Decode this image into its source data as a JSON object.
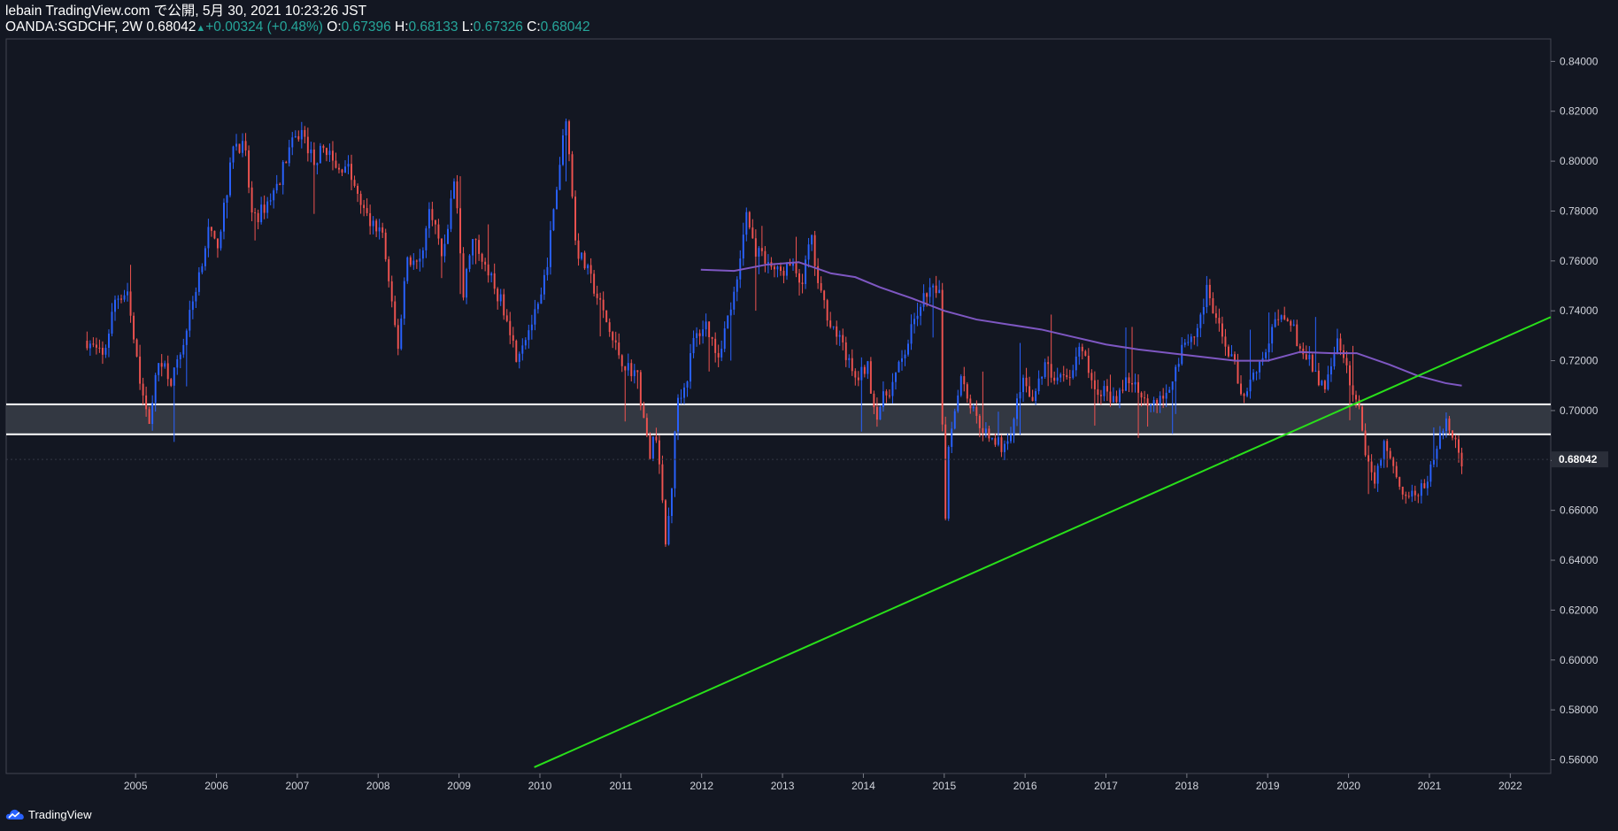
{
  "header": {
    "published": "lebain TradingView.com で公開, 5月 30, 2021 10:23:26 JST",
    "symbol": "OANDA:SGDCHF, 2W 0.68042",
    "change_arrow": "▲",
    "change": "+0.00324 (+0.48%)",
    "o_label": "O:",
    "o_value": "0.67396",
    "h_label": "H:",
    "h_value": "0.68133",
    "l_label": "L:",
    "l_value": "0.67326",
    "c_label": "C:",
    "c_value": "0.68042"
  },
  "footer": {
    "brand": "TradingView"
  },
  "colors": {
    "background": "#131722",
    "up": "#2962ff",
    "down": "#ef5350",
    "ma": "#7e57c2",
    "trendline": "#29e01a",
    "zone_fill": "#3a3e48",
    "zone_border": "#ffffff",
    "last_price_bg": "#2a2e39"
  },
  "chart_data": {
    "type": "candlestick",
    "symbol": "OANDA:SGDCHF",
    "interval": "2W",
    "x_range": [
      2003.4,
      2022.5
    ],
    "y_range": [
      0.5545,
      0.849
    ],
    "x_ticks": [
      "2005",
      "2006",
      "2007",
      "2008",
      "2009",
      "2010",
      "2011",
      "2012",
      "2013",
      "2014",
      "2015",
      "2016",
      "2017",
      "2018",
      "2019",
      "2020",
      "2021",
      "2022"
    ],
    "y_ticks": [
      "0.56000",
      "0.58000",
      "0.60000",
      "0.62000",
      "0.64000",
      "0.66000",
      "0.68000",
      "0.70000",
      "0.72000",
      "0.74000",
      "0.76000",
      "0.78000",
      "0.80000",
      "0.82000",
      "0.84000"
    ],
    "last_price": "0.68042",
    "close_path": [
      [
        2004.4,
        0.728
      ],
      [
        2004.6,
        0.721
      ],
      [
        2004.75,
        0.745
      ],
      [
        2004.9,
        0.748
      ],
      [
        2005.0,
        0.722
      ],
      [
        2005.1,
        0.705
      ],
      [
        2005.15,
        0.694
      ],
      [
        2005.3,
        0.722
      ],
      [
        2005.45,
        0.712
      ],
      [
        2005.6,
        0.728
      ],
      [
        2005.75,
        0.75
      ],
      [
        2005.9,
        0.772
      ],
      [
        2006.0,
        0.765
      ],
      [
        2006.15,
        0.79
      ],
      [
        2006.2,
        0.808
      ],
      [
        2006.35,
        0.805
      ],
      [
        2006.45,
        0.775
      ],
      [
        2006.6,
        0.782
      ],
      [
        2006.75,
        0.79
      ],
      [
        2006.9,
        0.805
      ],
      [
        2007.05,
        0.812
      ],
      [
        2007.2,
        0.8
      ],
      [
        2007.35,
        0.806
      ],
      [
        2007.5,
        0.795
      ],
      [
        2007.6,
        0.8
      ],
      [
        2007.75,
        0.785
      ],
      [
        2007.9,
        0.775
      ],
      [
        2008.05,
        0.772
      ],
      [
        2008.15,
        0.745
      ],
      [
        2008.25,
        0.725
      ],
      [
        2008.35,
        0.762
      ],
      [
        2008.5,
        0.758
      ],
      [
        2008.65,
        0.782
      ],
      [
        2008.8,
        0.76
      ],
      [
        2008.95,
        0.795
      ],
      [
        2009.05,
        0.745
      ],
      [
        2009.15,
        0.768
      ],
      [
        2009.3,
        0.762
      ],
      [
        2009.45,
        0.748
      ],
      [
        2009.6,
        0.738
      ],
      [
        2009.7,
        0.722
      ],
      [
        2009.85,
        0.732
      ],
      [
        2010.0,
        0.742
      ],
      [
        2010.1,
        0.762
      ],
      [
        2010.25,
        0.8
      ],
      [
        2010.32,
        0.82
      ],
      [
        2010.45,
        0.765
      ],
      [
        2010.6,
        0.755
      ],
      [
        2010.75,
        0.742
      ],
      [
        2010.9,
        0.728
      ],
      [
        2011.05,
        0.718
      ],
      [
        2011.2,
        0.715
      ],
      [
        2011.35,
        0.682
      ],
      [
        2011.45,
        0.692
      ],
      [
        2011.55,
        0.645
      ],
      [
        2011.62,
        0.665
      ],
      [
        2011.7,
        0.705
      ],
      [
        2011.8,
        0.71
      ],
      [
        2011.9,
        0.728
      ],
      [
        2012.05,
        0.735
      ],
      [
        2012.2,
        0.722
      ],
      [
        2012.35,
        0.74
      ],
      [
        2012.45,
        0.752
      ],
      [
        2012.55,
        0.78
      ],
      [
        2012.65,
        0.765
      ],
      [
        2012.8,
        0.76
      ],
      [
        2012.95,
        0.755
      ],
      [
        2013.1,
        0.758
      ],
      [
        2013.25,
        0.752
      ],
      [
        2013.35,
        0.77
      ],
      [
        2013.45,
        0.748
      ],
      [
        2013.6,
        0.735
      ],
      [
        2013.75,
        0.725
      ],
      [
        2013.9,
        0.712
      ],
      [
        2014.05,
        0.718
      ],
      [
        2014.15,
        0.698
      ],
      [
        2014.25,
        0.705
      ],
      [
        2014.35,
        0.71
      ],
      [
        2014.5,
        0.722
      ],
      [
        2014.65,
        0.738
      ],
      [
        2014.75,
        0.745
      ],
      [
        2014.85,
        0.748
      ],
      [
        2014.95,
        0.75
      ],
      [
        2015.0,
        0.648
      ],
      [
        2015.05,
        0.685
      ],
      [
        2015.2,
        0.715
      ],
      [
        2015.35,
        0.7
      ],
      [
        2015.5,
        0.692
      ],
      [
        2015.6,
        0.69
      ],
      [
        2015.7,
        0.685
      ],
      [
        2015.85,
        0.695
      ],
      [
        2015.95,
        0.712
      ],
      [
        2016.1,
        0.705
      ],
      [
        2016.25,
        0.718
      ],
      [
        2016.4,
        0.712
      ],
      [
        2016.55,
        0.715
      ],
      [
        2016.7,
        0.725
      ],
      [
        2016.85,
        0.708
      ],
      [
        2016.95,
        0.708
      ],
      [
        2017.1,
        0.705
      ],
      [
        2017.25,
        0.712
      ],
      [
        2017.4,
        0.71
      ],
      [
        2017.55,
        0.702
      ],
      [
        2017.7,
        0.705
      ],
      [
        2017.85,
        0.715
      ],
      [
        2017.95,
        0.728
      ],
      [
        2018.1,
        0.73
      ],
      [
        2018.25,
        0.748
      ],
      [
        2018.4,
        0.732
      ],
      [
        2018.55,
        0.722
      ],
      [
        2018.7,
        0.705
      ],
      [
        2018.8,
        0.715
      ],
      [
        2018.95,
        0.722
      ],
      [
        2019.1,
        0.735
      ],
      [
        2019.25,
        0.738
      ],
      [
        2019.4,
        0.725
      ],
      [
        2019.55,
        0.718
      ],
      [
        2019.7,
        0.708
      ],
      [
        2019.85,
        0.728
      ],
      [
        2019.95,
        0.718
      ],
      [
        2020.1,
        0.705
      ],
      [
        2020.2,
        0.685
      ],
      [
        2020.3,
        0.67
      ],
      [
        2020.45,
        0.688
      ],
      [
        2020.6,
        0.672
      ],
      [
        2020.75,
        0.665
      ],
      [
        2020.9,
        0.668
      ],
      [
        2021.0,
        0.675
      ],
      [
        2021.15,
        0.69
      ],
      [
        2021.22,
        0.698
      ],
      [
        2021.3,
        0.688
      ],
      [
        2021.4,
        0.68
      ]
    ],
    "moving_average": [
      [
        2011.99,
        0.7565
      ],
      [
        2012.4,
        0.756
      ],
      [
        2012.8,
        0.7585
      ],
      [
        2013.2,
        0.7595
      ],
      [
        2013.6,
        0.755
      ],
      [
        2013.9,
        0.7535
      ],
      [
        2014.2,
        0.7495
      ],
      [
        2014.6,
        0.745
      ],
      [
        2015.0,
        0.74
      ],
      [
        2015.4,
        0.7365
      ],
      [
        2015.8,
        0.7345
      ],
      [
        2016.2,
        0.7325
      ],
      [
        2016.6,
        0.7295
      ],
      [
        2017.0,
        0.7265
      ],
      [
        2017.4,
        0.7245
      ],
      [
        2017.8,
        0.723
      ],
      [
        2018.2,
        0.7215
      ],
      [
        2018.6,
        0.72
      ],
      [
        2019.0,
        0.72
      ],
      [
        2019.4,
        0.7235
      ],
      [
        2019.8,
        0.723
      ],
      [
        2020.1,
        0.723
      ],
      [
        2020.5,
        0.7185
      ],
      [
        2020.85,
        0.714
      ],
      [
        2021.2,
        0.711
      ],
      [
        2021.4,
        0.71
      ]
    ],
    "trendline": [
      [
        2009.93,
        0.557
      ],
      [
        2022.5,
        0.7375
      ]
    ],
    "zone": [
      0.6905,
      0.7025
    ]
  }
}
